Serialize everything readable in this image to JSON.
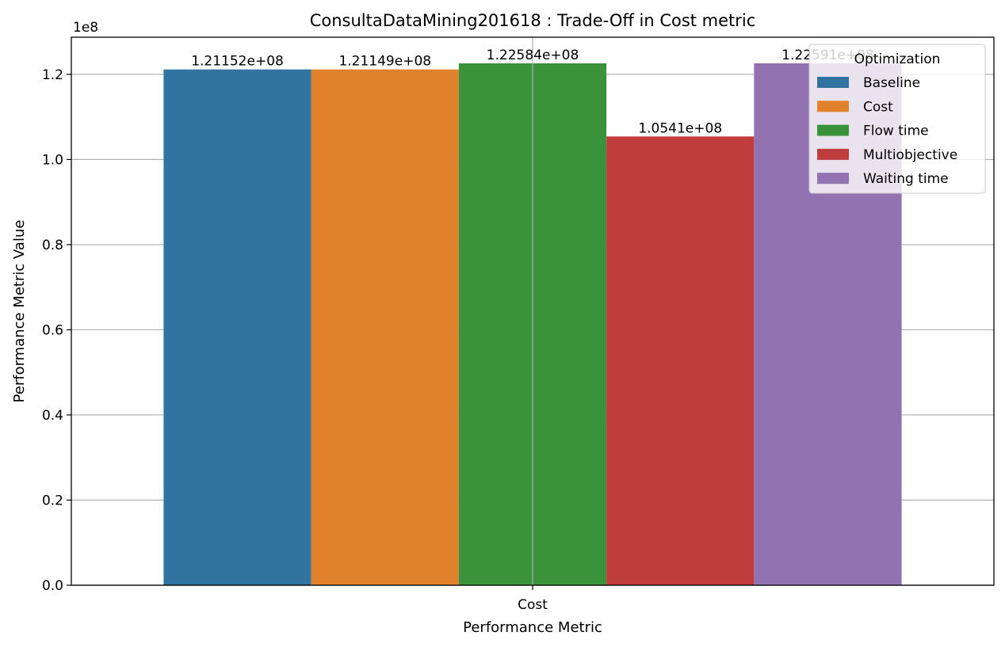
{
  "chart_data": {
    "type": "bar",
    "title": "ConsultaDataMining201618 : Trade-Off in Cost metric",
    "xlabel": "Performance Metric",
    "ylabel": "Performance Metric Value",
    "y_offset_label": "1e8",
    "categories": [
      "Cost"
    ],
    "series": [
      {
        "name": "Baseline",
        "values": [
          121152000
        ],
        "label": "1.21152e+08",
        "color": "#3274a1"
      },
      {
        "name": "Cost",
        "values": [
          121149000
        ],
        "label": "1.21149e+08",
        "color": "#e1812c"
      },
      {
        "name": "Flow time",
        "values": [
          122584000
        ],
        "label": "1.22584e+08",
        "color": "#3a923a"
      },
      {
        "name": "Multiobjective",
        "values": [
          105410000
        ],
        "label": "1.0541e+08",
        "color": "#c03d3e"
      },
      {
        "name": "Waiting time",
        "values": [
          122591000
        ],
        "label": "1.22591e+08",
        "color": "#9372b2"
      }
    ],
    "y_ticks": [
      0,
      20000000,
      40000000,
      60000000,
      80000000,
      100000000,
      120000000
    ],
    "y_tick_labels": [
      "0.0",
      "0.2",
      "0.4",
      "0.6",
      "0.8",
      "1.0",
      "1.2"
    ],
    "ylim": [
      0,
      128718000
    ],
    "grid": true,
    "legend": {
      "title": "Optimization",
      "placement": "top-right"
    }
  }
}
